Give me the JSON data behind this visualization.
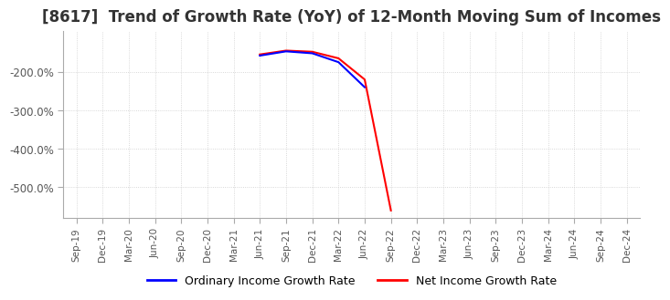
{
  "title": "[8617]  Trend of Growth Rate (YoY) of 12-Month Moving Sum of Incomes",
  "title_fontsize": 12,
  "legend_labels": [
    "Ordinary Income Growth Rate",
    "Net Income Growth Rate"
  ],
  "legend_colors": [
    "blue",
    "red"
  ],
  "x_tick_labels": [
    "Sep-19",
    "Dec-19",
    "Mar-20",
    "Jun-20",
    "Sep-20",
    "Dec-20",
    "Mar-21",
    "Jun-21",
    "Sep-21",
    "Dec-21",
    "Mar-22",
    "Jun-22",
    "Sep-22",
    "Dec-22",
    "Mar-23",
    "Jun-23",
    "Sep-23",
    "Dec-23",
    "Mar-24",
    "Jun-24",
    "Sep-24",
    "Dec-24"
  ],
  "ylim_min": -580,
  "ylim_max": -95,
  "yticks": [
    -200,
    -300,
    -400,
    -500
  ],
  "ytick_labels": [
    "-200.0%",
    "-300.0%",
    "-400.0%",
    "-500.0%"
  ],
  "ordinary_x": [
    7,
    8,
    9,
    10,
    11
  ],
  "ordinary_y": [
    -158,
    -147,
    -152,
    -175,
    -240
  ],
  "net_x": [
    7,
    8,
    9,
    10,
    11,
    12
  ],
  "net_y": [
    -155,
    -145,
    -148,
    -165,
    -220,
    -560
  ],
  "line_width": 1.5,
  "grid_color": "#cccccc",
  "background_color": "#ffffff",
  "text_color": "#555555"
}
